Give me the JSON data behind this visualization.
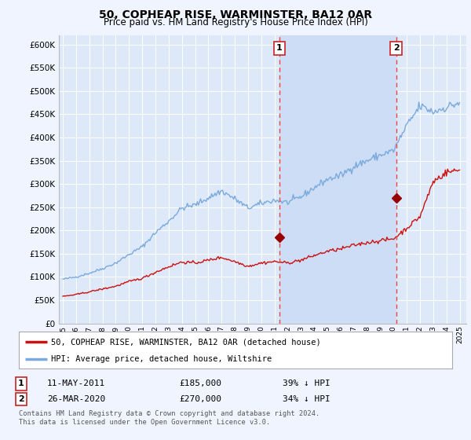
{
  "title": "50, COPHEAP RISE, WARMINSTER, BA12 0AR",
  "subtitle": "Price paid vs. HM Land Registry's House Price Index (HPI)",
  "title_fontsize": 10,
  "subtitle_fontsize": 8.5,
  "bg_color": "#f0f4ff",
  "plot_bg_color": "#dde8f8",
  "between_bg_color": "#ccddf5",
  "grid_color": "#ffffff",
  "ylim": [
    0,
    620000
  ],
  "yticks": [
    0,
    50000,
    100000,
    150000,
    200000,
    250000,
    300000,
    350000,
    400000,
    450000,
    500000,
    550000,
    600000
  ],
  "ytick_labels": [
    "£0",
    "£50K",
    "£100K",
    "£150K",
    "£200K",
    "£250K",
    "£300K",
    "£350K",
    "£400K",
    "£450K",
    "£500K",
    "£550K",
    "£600K"
  ],
  "hpi_color": "#7aaadd",
  "price_color": "#cc1111",
  "marker_color": "#990000",
  "vline_color": "#ee4444",
  "transaction1_year": 2011.36,
  "transaction1_price": 185000,
  "transaction1_label": "11-MAY-2011",
  "transaction1_price_label": "£185,000",
  "transaction1_hpi_label": "39% ↓ HPI",
  "transaction2_year": 2020.2,
  "transaction2_price": 270000,
  "transaction2_label": "26-MAR-2020",
  "transaction2_price_label": "£270,000",
  "transaction2_hpi_label": "34% ↓ HPI",
  "legend_line1": "50, COPHEAP RISE, WARMINSTER, BA12 0AR (detached house)",
  "legend_line2": "HPI: Average price, detached house, Wiltshire",
  "footer1": "Contains HM Land Registry data © Crown copyright and database right 2024.",
  "footer2": "This data is licensed under the Open Government Licence v3.0."
}
